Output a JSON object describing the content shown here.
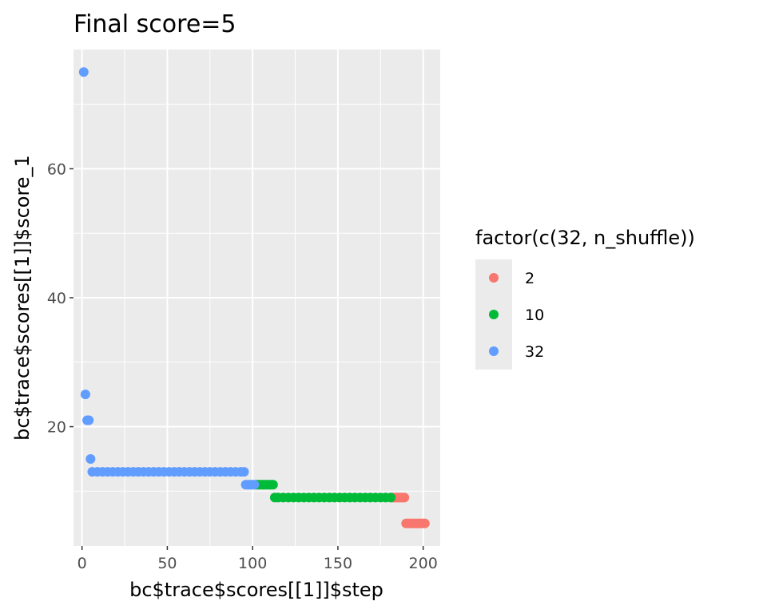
{
  "chart_data": {
    "type": "scatter",
    "title": "Final score=5",
    "xlabel": "bc$trace$scores[[1]]$step",
    "ylabel": "bc$trace$scores[[1]]$score_1",
    "xlim": [
      -5,
      210
    ],
    "ylim": [
      1.5,
      78.5
    ],
    "x_ticks": [
      0,
      50,
      100,
      150,
      200
    ],
    "y_ticks": [
      20,
      40,
      60
    ],
    "grid": true,
    "legend_placement": "right",
    "legend_title": "factor(c(32, n_shuffle))",
    "background": "#EBEBEB",
    "series": [
      {
        "name": "2",
        "color": "#F8766D",
        "points": [
          {
            "x": 182,
            "y": 9
          },
          {
            "x": 183,
            "y": 9
          },
          {
            "x": 184,
            "y": 9
          },
          {
            "x": 185,
            "y": 9
          },
          {
            "x": 186,
            "y": 9
          },
          {
            "x": 187,
            "y": 9
          },
          {
            "x": 188,
            "y": 9
          },
          {
            "x": 189,
            "y": 9
          },
          {
            "x": 190,
            "y": 5
          },
          {
            "x": 191,
            "y": 5
          },
          {
            "x": 192,
            "y": 5
          },
          {
            "x": 193,
            "y": 5
          },
          {
            "x": 194,
            "y": 5
          },
          {
            "x": 195,
            "y": 5
          },
          {
            "x": 196,
            "y": 5
          },
          {
            "x": 197,
            "y": 5
          },
          {
            "x": 198,
            "y": 5
          },
          {
            "x": 199,
            "y": 5
          },
          {
            "x": 200,
            "y": 5
          },
          {
            "x": 201,
            "y": 5
          }
        ]
      },
      {
        "name": "10",
        "color": "#00BA38",
        "points": [
          {
            "x": 102,
            "y": 11
          },
          {
            "x": 103,
            "y": 11
          },
          {
            "x": 104,
            "y": 11
          },
          {
            "x": 105,
            "y": 11
          },
          {
            "x": 106,
            "y": 11
          },
          {
            "x": 107,
            "y": 11
          },
          {
            "x": 108,
            "y": 11
          },
          {
            "x": 109,
            "y": 11
          },
          {
            "x": 110,
            "y": 11
          },
          {
            "x": 111,
            "y": 11
          },
          {
            "x": 112,
            "y": 11
          },
          {
            "x": 113,
            "y": 9
          },
          {
            "x": 115,
            "y": 9
          },
          {
            "x": 118,
            "y": 9
          },
          {
            "x": 121,
            "y": 9
          },
          {
            "x": 124,
            "y": 9
          },
          {
            "x": 127,
            "y": 9
          },
          {
            "x": 130,
            "y": 9
          },
          {
            "x": 133,
            "y": 9
          },
          {
            "x": 136,
            "y": 9
          },
          {
            "x": 139,
            "y": 9
          },
          {
            "x": 142,
            "y": 9
          },
          {
            "x": 145,
            "y": 9
          },
          {
            "x": 148,
            "y": 9
          },
          {
            "x": 151,
            "y": 9
          },
          {
            "x": 154,
            "y": 9
          },
          {
            "x": 157,
            "y": 9
          },
          {
            "x": 160,
            "y": 9
          },
          {
            "x": 163,
            "y": 9
          },
          {
            "x": 166,
            "y": 9
          },
          {
            "x": 169,
            "y": 9
          },
          {
            "x": 172,
            "y": 9
          },
          {
            "x": 175,
            "y": 9
          },
          {
            "x": 178,
            "y": 9
          },
          {
            "x": 181,
            "y": 9
          }
        ]
      },
      {
        "name": "32",
        "color": "#619CFF",
        "points": [
          {
            "x": 1,
            "y": 75
          },
          {
            "x": 2,
            "y": 25
          },
          {
            "x": 3,
            "y": 21
          },
          {
            "x": 4,
            "y": 21
          },
          {
            "x": 5,
            "y": 15
          },
          {
            "x": 6,
            "y": 13
          },
          {
            "x": 9,
            "y": 13
          },
          {
            "x": 12,
            "y": 13
          },
          {
            "x": 15,
            "y": 13
          },
          {
            "x": 18,
            "y": 13
          },
          {
            "x": 21,
            "y": 13
          },
          {
            "x": 24,
            "y": 13
          },
          {
            "x": 27,
            "y": 13
          },
          {
            "x": 30,
            "y": 13
          },
          {
            "x": 33,
            "y": 13
          },
          {
            "x": 36,
            "y": 13
          },
          {
            "x": 39,
            "y": 13
          },
          {
            "x": 42,
            "y": 13
          },
          {
            "x": 45,
            "y": 13
          },
          {
            "x": 48,
            "y": 13
          },
          {
            "x": 51,
            "y": 13
          },
          {
            "x": 54,
            "y": 13
          },
          {
            "x": 57,
            "y": 13
          },
          {
            "x": 60,
            "y": 13
          },
          {
            "x": 63,
            "y": 13
          },
          {
            "x": 66,
            "y": 13
          },
          {
            "x": 69,
            "y": 13
          },
          {
            "x": 72,
            "y": 13
          },
          {
            "x": 75,
            "y": 13
          },
          {
            "x": 78,
            "y": 13
          },
          {
            "x": 81,
            "y": 13
          },
          {
            "x": 84,
            "y": 13
          },
          {
            "x": 87,
            "y": 13
          },
          {
            "x": 90,
            "y": 13
          },
          {
            "x": 93,
            "y": 13
          },
          {
            "x": 95,
            "y": 13
          },
          {
            "x": 96,
            "y": 11
          },
          {
            "x": 97,
            "y": 11
          },
          {
            "x": 98,
            "y": 11
          },
          {
            "x": 99,
            "y": 11
          },
          {
            "x": 100,
            "y": 11
          },
          {
            "x": 101,
            "y": 11
          }
        ]
      }
    ]
  }
}
